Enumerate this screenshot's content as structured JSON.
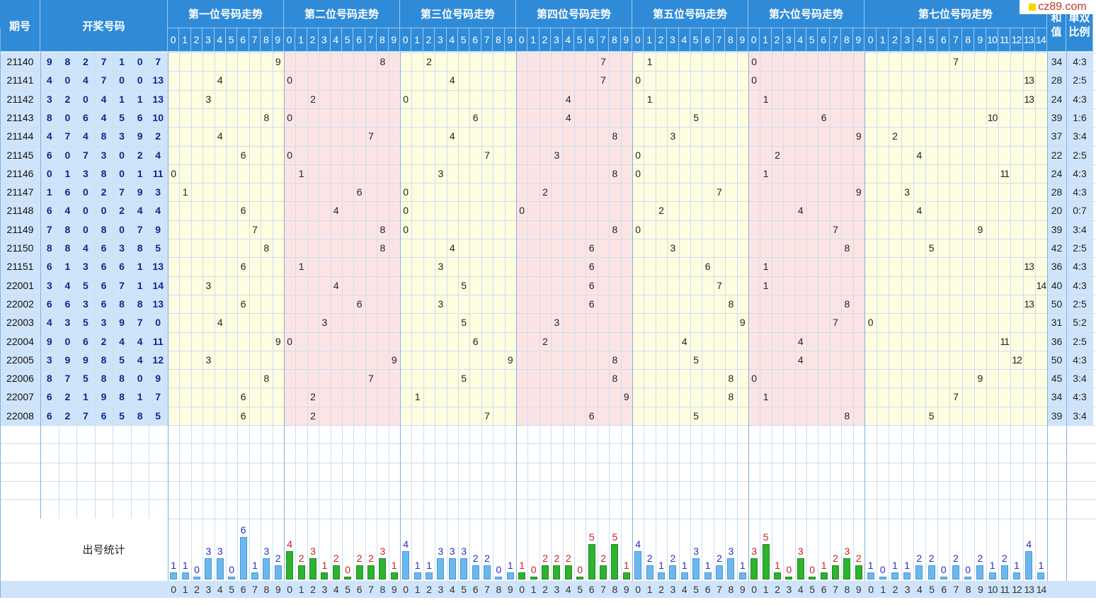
{
  "logo": "cz89.com",
  "headers": {
    "issue": "期号",
    "numbers": "开奖号码",
    "positions": [
      "第一位号码走势",
      "第二位号码走势",
      "第三位号码走势",
      "第四位号码走势",
      "第五位号码走势",
      "第六位号码走势",
      "第七位号码走势"
    ],
    "sum": "和值",
    "ratio": "单双比例",
    "stats": "出号统计"
  },
  "digits_1_6": [
    "0",
    "1",
    "2",
    "3",
    "4",
    "5",
    "6",
    "7",
    "8",
    "9"
  ],
  "digits_7": [
    "0",
    "1",
    "2",
    "3",
    "4",
    "5",
    "6",
    "7",
    "8",
    "9",
    "10",
    "11",
    "12",
    "13",
    "14"
  ],
  "draws": [
    {
      "issue": "21140",
      "nums": [
        9,
        8,
        2,
        7,
        1,
        0,
        7
      ],
      "sum": 34,
      "ratio": "4:3"
    },
    {
      "issue": "21141",
      "nums": [
        4,
        0,
        4,
        7,
        0,
        0,
        13
      ],
      "sum": 28,
      "ratio": "2:5"
    },
    {
      "issue": "21142",
      "nums": [
        3,
        2,
        0,
        4,
        1,
        1,
        13
      ],
      "sum": 24,
      "ratio": "4:3"
    },
    {
      "issue": "21143",
      "nums": [
        8,
        0,
        6,
        4,
        5,
        6,
        10
      ],
      "sum": 39,
      "ratio": "1:6"
    },
    {
      "issue": "21144",
      "nums": [
        4,
        7,
        4,
        8,
        3,
        9,
        2
      ],
      "sum": 37,
      "ratio": "3:4"
    },
    {
      "issue": "21145",
      "nums": [
        6,
        0,
        7,
        3,
        0,
        2,
        4
      ],
      "sum": 22,
      "ratio": "2:5"
    },
    {
      "issue": "21146",
      "nums": [
        0,
        1,
        3,
        8,
        0,
        1,
        11
      ],
      "sum": 24,
      "ratio": "4:3"
    },
    {
      "issue": "21147",
      "nums": [
        1,
        6,
        0,
        2,
        7,
        9,
        3
      ],
      "sum": 28,
      "ratio": "4:3"
    },
    {
      "issue": "21148",
      "nums": [
        6,
        4,
        0,
        0,
        2,
        4,
        4
      ],
      "sum": 20,
      "ratio": "0:7"
    },
    {
      "issue": "21149",
      "nums": [
        7,
        8,
        0,
        8,
        0,
        7,
        9
      ],
      "sum": 39,
      "ratio": "3:4"
    },
    {
      "issue": "21150",
      "nums": [
        8,
        8,
        4,
        6,
        3,
        8,
        5
      ],
      "sum": 42,
      "ratio": "2:5"
    },
    {
      "issue": "21151",
      "nums": [
        6,
        1,
        3,
        6,
        6,
        1,
        13
      ],
      "sum": 36,
      "ratio": "4:3"
    },
    {
      "issue": "22001",
      "nums": [
        3,
        4,
        5,
        6,
        7,
        1,
        14
      ],
      "sum": 40,
      "ratio": "4:3"
    },
    {
      "issue": "22002",
      "nums": [
        6,
        6,
        3,
        6,
        8,
        8,
        13
      ],
      "sum": 50,
      "ratio": "2:5"
    },
    {
      "issue": "22003",
      "nums": [
        4,
        3,
        5,
        3,
        9,
        7,
        0
      ],
      "sum": 31,
      "ratio": "5:2"
    },
    {
      "issue": "22004",
      "nums": [
        9,
        0,
        6,
        2,
        4,
        4,
        11
      ],
      "sum": 36,
      "ratio": "2:5"
    },
    {
      "issue": "22005",
      "nums": [
        3,
        9,
        9,
        8,
        5,
        4,
        12
      ],
      "sum": 50,
      "ratio": "4:3"
    },
    {
      "issue": "22006",
      "nums": [
        8,
        7,
        5,
        8,
        8,
        0,
        9
      ],
      "sum": 45,
      "ratio": "3:4"
    },
    {
      "issue": "22007",
      "nums": [
        6,
        2,
        1,
        9,
        8,
        1,
        7
      ],
      "sum": 34,
      "ratio": "4:3"
    },
    {
      "issue": "22008",
      "nums": [
        6,
        2,
        7,
        6,
        5,
        8,
        5
      ],
      "sum": 39,
      "ratio": "3:4"
    }
  ],
  "chart_data": {
    "type": "bar",
    "title": "出号统计",
    "series": [
      {
        "values": [
          1,
          1,
          0,
          3,
          3,
          0,
          6,
          1,
          3,
          2
        ]
      },
      {
        "values": [
          4,
          2,
          3,
          1,
          2,
          0,
          2,
          2,
          3,
          1
        ]
      },
      {
        "values": [
          4,
          1,
          1,
          3,
          3,
          3,
          2,
          2,
          0,
          1
        ]
      },
      {
        "values": [
          1,
          0,
          2,
          2,
          2,
          0,
          5,
          2,
          5,
          1
        ]
      },
      {
        "values": [
          4,
          2,
          1,
          2,
          1,
          3,
          1,
          2,
          3,
          1
        ]
      },
      {
        "values": [
          3,
          5,
          1,
          0,
          3,
          0,
          1,
          2,
          3,
          2
        ]
      },
      {
        "values": [
          1,
          0,
          1,
          1,
          2,
          2,
          0,
          2,
          0,
          2,
          1,
          2,
          1,
          4,
          1
        ]
      }
    ]
  },
  "colors": {
    "header_blue": "#2f8bd8",
    "left_fill": "#cfe4fb",
    "zone_yellow": "#fffde0",
    "zone_pink": "#fde4e4",
    "bar_blue": "#6bb8f0",
    "bar_green": "#2db32d",
    "count_blue": "#2a2ac8",
    "count_red": "#d01c1c"
  }
}
